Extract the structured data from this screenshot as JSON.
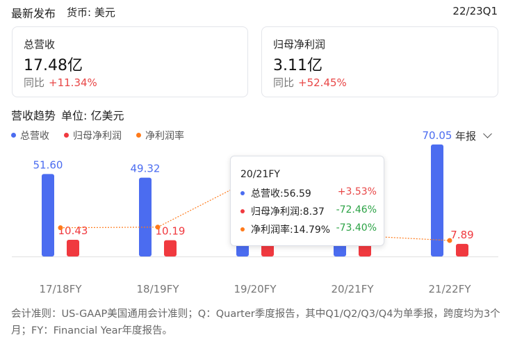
{
  "header": {
    "title": "最新发布",
    "currency": "货币: 美元",
    "period": "22/23Q1"
  },
  "cards": [
    {
      "label": "总营收",
      "value": "17.48亿",
      "yoy_label": "同比",
      "yoy_value": "+11.34%"
    },
    {
      "label": "归母净利润",
      "value": "3.11亿",
      "yoy_label": "同比",
      "yoy_value": "+52.45%"
    }
  ],
  "section": {
    "title": "营收趋势",
    "unit": "单位: 亿美元"
  },
  "legend": [
    {
      "label": "总营收",
      "color": "#4b6cf0"
    },
    {
      "label": "归母净利润",
      "color": "#f0393f"
    },
    {
      "label": "净利润率",
      "color": "#ff7a1a"
    }
  ],
  "period_select": {
    "label": "年报",
    "icon": "chevron-down-icon"
  },
  "chart_data": {
    "type": "bar",
    "categories": [
      "17/18FY",
      "18/19FY",
      "19/20FY",
      "20/21FY",
      "21/22FY"
    ],
    "series": [
      {
        "name": "总营收",
        "type": "bar",
        "color": "#4b6cf0",
        "values": [
          51.6,
          49.32,
          54.65,
          56.59,
          70.05
        ],
        "labels": [
          "51.60",
          "49.32",
          "",
          "",
          "70.05"
        ]
      },
      {
        "name": "归母净利润",
        "type": "bar",
        "color": "#f0393f",
        "values": [
          10.43,
          10.19,
          30.4,
          8.37,
          7.89
        ],
        "labels": [
          "10.43",
          "10.19",
          "",
          "",
          "7.89"
        ]
      },
      {
        "name": "净利润率",
        "type": "line",
        "color": "#ff7a1a",
        "values": [
          20.21,
          20.66,
          55.6,
          14.79,
          11.26
        ]
      }
    ],
    "bar_ylim": [
      0,
      80
    ],
    "line_ylim": [
      0,
      90
    ]
  },
  "tooltip": {
    "title": "20/21FY",
    "rows": [
      {
        "label": "总营收:56.59",
        "value": "+3.53%",
        "color": "#4b6cf0",
        "value_color": "#e84646"
      },
      {
        "label": "归母净利润:8.37",
        "value": "-72.46%",
        "color": "#f0393f",
        "value_color": "#2ba245"
      },
      {
        "label": "净利润率:14.79%",
        "value": "-73.40%",
        "color": "#ff7a1a",
        "value_color": "#2ba245"
      }
    ]
  },
  "footnote": "会计准则：US-GAAP美国通用会计准则；Q：Quarter季度报告，其中Q1/Q2/Q3/Q4为单季报，跨度均为3个月；FY：Financial Year年度报告。"
}
